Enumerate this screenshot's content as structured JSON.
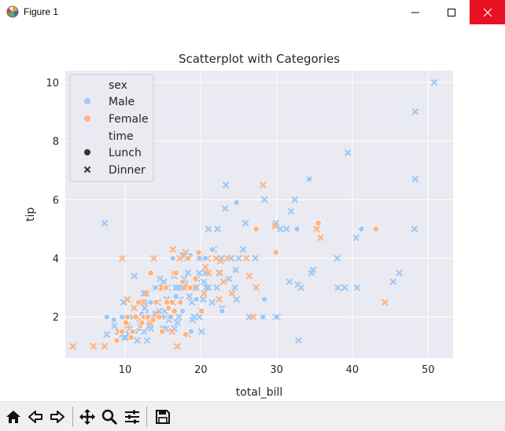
{
  "window": {
    "title": "Figure 1"
  },
  "toolbar": {
    "buttons": [
      {
        "name": "home-icon"
      },
      {
        "name": "back-icon"
      },
      {
        "name": "forward-icon"
      },
      {
        "name": "pan-icon"
      },
      {
        "name": "zoom-icon"
      },
      {
        "name": "configure-subplots-icon"
      },
      {
        "name": "save-icon"
      }
    ]
  },
  "chart_data": {
    "type": "scatter",
    "title": "Scatterplot with Categories",
    "xlabel": "total_bill",
    "ylabel": "tip",
    "xlim": [
      2.1,
      53.3
    ],
    "ylim": [
      0.6,
      10.4
    ],
    "xticks": [
      10,
      20,
      30,
      40,
      50
    ],
    "yticks": [
      2,
      4,
      6,
      8,
      10
    ],
    "grid": true,
    "background": "#eaeaf2",
    "colors": {
      "Male": "#a1c9f4",
      "Female": "#ffb482"
    },
    "legend": {
      "location": "upper left",
      "entries": [
        {
          "label": "sex",
          "kind": "header"
        },
        {
          "label": "Male",
          "kind": "color",
          "color": "#a1c9f4"
        },
        {
          "label": "Female",
          "kind": "color",
          "color": "#ffb482"
        },
        {
          "label": "time",
          "kind": "header"
        },
        {
          "label": "Lunch",
          "kind": "marker",
          "marker": "circle"
        },
        {
          "label": "Dinner",
          "kind": "marker",
          "marker": "x"
        }
      ]
    },
    "series": [
      {
        "name": "Male / Dinner",
        "sex": "Male",
        "time": "Dinner",
        "marker": "x",
        "points": [
          [
            50.8,
            10.0
          ],
          [
            48.3,
            9.0
          ],
          [
            48.3,
            6.7
          ],
          [
            48.2,
            5.0
          ],
          [
            39.4,
            7.6
          ],
          [
            34.3,
            6.7
          ],
          [
            32.4,
            6.0
          ],
          [
            31.9,
            5.6
          ],
          [
            29.9,
            5.2
          ],
          [
            28.4,
            6.0
          ],
          [
            23.3,
            6.5
          ],
          [
            23.2,
            5.7
          ],
          [
            25.9,
            5.2
          ],
          [
            40.5,
            4.7
          ],
          [
            34.8,
            3.6
          ],
          [
            34.6,
            3.5
          ],
          [
            38.0,
            4.0
          ],
          [
            46.2,
            3.5
          ],
          [
            45.4,
            3.2
          ],
          [
            39.0,
            3.0
          ],
          [
            38.1,
            3.0
          ],
          [
            40.6,
            3.0
          ],
          [
            32.8,
            3.1
          ],
          [
            31.7,
            3.2
          ],
          [
            32.9,
            1.2
          ],
          [
            29.9,
            2.0
          ],
          [
            28.2,
            2.0
          ],
          [
            30.1,
            2.0
          ],
          [
            26.4,
            2.0
          ],
          [
            22.8,
            2.3
          ],
          [
            24.7,
            2.6
          ],
          [
            24.5,
            3.0
          ],
          [
            21.0,
            3.0
          ],
          [
            22.4,
            3.5
          ],
          [
            20.6,
            3.5
          ],
          [
            20.3,
            2.6
          ],
          [
            18.8,
            2.5
          ],
          [
            19.4,
            3.0
          ],
          [
            17.8,
            3.3
          ],
          [
            17.0,
            3.0
          ],
          [
            16.5,
            3.4
          ],
          [
            15.6,
            3.0
          ],
          [
            14.6,
            3.3
          ],
          [
            15.5,
            2.6
          ],
          [
            13.9,
            3.0
          ],
          [
            13.0,
            2.5
          ],
          [
            12.6,
            2.3
          ],
          [
            11.0,
            2.0
          ],
          [
            10.3,
            1.7
          ],
          [
            10.6,
            1.6
          ],
          [
            10.1,
            2.0
          ],
          [
            9.9,
            1.3
          ],
          [
            9.6,
            1.4
          ],
          [
            10.1,
            1.3
          ],
          [
            9.2,
            1.5
          ],
          [
            8.6,
            1.7
          ],
          [
            7.6,
            1.4
          ],
          [
            7.3,
            5.2
          ],
          [
            11.7,
            2.0
          ],
          [
            12.5,
            1.5
          ],
          [
            12.7,
            2.1
          ],
          [
            13.4,
            1.6
          ],
          [
            14.1,
            2.0
          ],
          [
            14.5,
            2.2
          ],
          [
            15.0,
            1.6
          ],
          [
            15.4,
            1.6
          ],
          [
            16.0,
            2.0
          ],
          [
            16.3,
            2.5
          ],
          [
            17.1,
            2.0
          ],
          [
            17.5,
            3.0
          ],
          [
            17.9,
            4.1
          ],
          [
            18.3,
            3.5
          ],
          [
            18.7,
            3.0
          ],
          [
            18.2,
            4.0
          ],
          [
            17.6,
            4.1
          ],
          [
            19.5,
            3.3
          ],
          [
            19.8,
            3.5
          ],
          [
            20.0,
            4.0
          ],
          [
            20.4,
            3.2
          ],
          [
            21.0,
            5.0
          ],
          [
            21.7,
            4.3
          ],
          [
            22.2,
            5.0
          ],
          [
            22.7,
            4.0
          ],
          [
            23.7,
            3.3
          ],
          [
            24.0,
            4.0
          ],
          [
            25.0,
            4.0
          ],
          [
            25.6,
            4.3
          ],
          [
            27.2,
            4.0
          ],
          [
            30.5,
            5.0
          ],
          [
            31.3,
            5.0
          ],
          [
            33.2,
            3.0
          ],
          [
            24.6,
            3.6
          ],
          [
            22.1,
            3.0
          ],
          [
            21.5,
            2.5
          ],
          [
            20.7,
            3.0
          ],
          [
            11.2,
            3.4
          ],
          [
            12.5,
            2.8
          ],
          [
            13.2,
            1.7
          ],
          [
            15.8,
            1.9
          ],
          [
            16.9,
            1.8
          ],
          [
            18.9,
            1.9
          ],
          [
            19.8,
            2.0
          ],
          [
            20.1,
            1.5
          ],
          [
            20.0,
            2.2
          ],
          [
            17.3,
            2.6
          ],
          [
            16.5,
            1.6
          ],
          [
            14.8,
            2.0
          ],
          [
            12.9,
            1.2
          ],
          [
            11.6,
            1.2
          ],
          [
            10.5,
            1.4
          ],
          [
            9.8,
            2.5
          ],
          [
            11.9,
            1.8
          ],
          [
            13.5,
            2.0
          ],
          [
            14.3,
            2.5
          ],
          [
            15.2,
            2.2
          ],
          [
            17.9,
            3.1
          ],
          [
            18.5,
            2.7
          ],
          [
            19.1,
            2.0
          ],
          [
            16.7,
            3.0
          ],
          [
            15.1,
            3.2
          ],
          [
            14.0,
            2.1
          ]
        ]
      },
      {
        "name": "Female / Dinner",
        "sex": "Female",
        "time": "Dinner",
        "marker": "x",
        "points": [
          [
            9.6,
            4.0
          ],
          [
            13.8,
            4.0
          ],
          [
            16.3,
            4.3
          ],
          [
            17.2,
            4.0
          ],
          [
            18.0,
            4.2
          ],
          [
            19.8,
            4.0
          ],
          [
            20.9,
            4.0
          ],
          [
            23.5,
            4.0
          ],
          [
            26.0,
            4.0
          ],
          [
            27.3,
            3.0
          ],
          [
            28.2,
            6.5
          ],
          [
            29.8,
            5.1
          ],
          [
            35.3,
            5.0
          ],
          [
            35.8,
            4.7
          ],
          [
            44.3,
            2.5
          ],
          [
            26.9,
            2.0
          ],
          [
            22.5,
            3.5
          ],
          [
            23.0,
            3.2
          ],
          [
            21.0,
            3.5
          ],
          [
            19.1,
            3.0
          ],
          [
            20.6,
            3.7
          ],
          [
            17.9,
            3.0
          ],
          [
            16.4,
            3.5
          ],
          [
            15.0,
            3.0
          ],
          [
            14.8,
            3.0
          ],
          [
            12.0,
            2.5
          ],
          [
            10.6,
            2.0
          ],
          [
            10.3,
            2.6
          ],
          [
            10.0,
            2.0
          ],
          [
            9.1,
            1.5
          ],
          [
            5.8,
            1.0
          ],
          [
            3.1,
            1.0
          ],
          [
            7.3,
            1.0
          ],
          [
            11.6,
            2.0
          ],
          [
            12.4,
            2.5
          ],
          [
            13.3,
            1.8
          ],
          [
            14.3,
            2.1
          ],
          [
            15.5,
            2.0
          ],
          [
            16.2,
            1.5
          ],
          [
            16.9,
            1.0
          ],
          [
            18.3,
            1.4
          ],
          [
            24.1,
            2.8
          ],
          [
            22.4,
            2.6
          ],
          [
            26.4,
            3.4
          ],
          [
            22.6,
            3.9
          ],
          [
            22.0,
            4.0
          ],
          [
            20.4,
            2.8
          ],
          [
            12.8,
            2.8
          ],
          [
            11.2,
            2.3
          ],
          [
            10.3,
            1.7
          ]
        ]
      },
      {
        "name": "Male / Lunch",
        "sex": "Male",
        "time": "Lunch",
        "marker": "circle",
        "points": [
          [
            34.3,
            6.7
          ],
          [
            41.2,
            5.0
          ],
          [
            32.7,
            5.0
          ],
          [
            24.7,
            5.9
          ],
          [
            19.8,
            4.0
          ],
          [
            18.6,
            4.1
          ],
          [
            16.3,
            4.0
          ],
          [
            20.6,
            4.0
          ],
          [
            21.5,
            4.3
          ],
          [
            28.4,
            2.6
          ],
          [
            30.0,
            2.0
          ],
          [
            28.2,
            2.0
          ],
          [
            22.8,
            2.2
          ],
          [
            18.7,
            1.5
          ],
          [
            16.0,
            2.0
          ],
          [
            15.0,
            2.0
          ],
          [
            13.4,
            2.5
          ],
          [
            12.2,
            2.1
          ],
          [
            11.4,
            1.5
          ],
          [
            10.8,
            2.0
          ],
          [
            9.6,
            2.0
          ],
          [
            8.5,
            1.9
          ],
          [
            7.6,
            2.0
          ],
          [
            12.6,
            2.0
          ],
          [
            14.0,
            3.0
          ],
          [
            16.7,
            2.7
          ],
          [
            17.6,
            2.2
          ],
          [
            19.4,
            2.6
          ],
          [
            10.1,
            1.8
          ],
          [
            11.9,
            1.6
          ]
        ]
      },
      {
        "name": "Female / Lunch",
        "sex": "Female",
        "time": "Lunch",
        "marker": "circle",
        "points": [
          [
            43.1,
            5.0
          ],
          [
            35.5,
            5.2
          ],
          [
            29.9,
            4.2
          ],
          [
            27.3,
            5.0
          ],
          [
            19.7,
            4.2
          ],
          [
            16.4,
            3.5
          ],
          [
            13.4,
            3.5
          ],
          [
            18.3,
            4.0
          ],
          [
            16.2,
            2.5
          ],
          [
            15.5,
            2.5
          ],
          [
            14.1,
            2.5
          ],
          [
            12.5,
            2.0
          ],
          [
            12.0,
            1.7
          ],
          [
            11.4,
            2.0
          ],
          [
            10.3,
            2.0
          ],
          [
            9.6,
            1.5
          ],
          [
            8.9,
            1.2
          ],
          [
            10.1,
            1.8
          ],
          [
            11.0,
            1.5
          ],
          [
            13.0,
            2.0
          ],
          [
            14.5,
            2.0
          ],
          [
            15.7,
            2.3
          ],
          [
            16.5,
            2.2
          ],
          [
            17.3,
            2.5
          ],
          [
            17.6,
            3.2
          ],
          [
            18.6,
            3.0
          ],
          [
            19.3,
            3.3
          ],
          [
            20.1,
            2.2
          ],
          [
            18.0,
            1.4
          ],
          [
            16.7,
            3.5
          ],
          [
            15.4,
            3.0
          ],
          [
            12.2,
            1.8
          ],
          [
            11.8,
            2.5
          ],
          [
            10.8,
            1.3
          ],
          [
            13.7,
            1.9
          ],
          [
            14.9,
            1.5
          ]
        ]
      }
    ]
  }
}
